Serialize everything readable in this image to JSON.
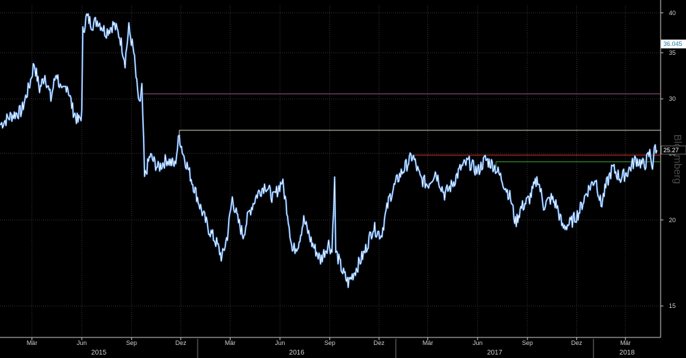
{
  "chart_data": {
    "type": "line",
    "title": "",
    "xlabel": "",
    "ylabel": "",
    "scale": "log",
    "ylim": [
      13.5,
      41
    ],
    "y_ticks": [
      15,
      20,
      25,
      30,
      35,
      40
    ],
    "x_range": [
      "2015-01-01",
      "2018-05-05"
    ],
    "x_tick_labels": [
      {
        "date": "2015-03-01",
        "label": "Mär"
      },
      {
        "date": "2015-06-01",
        "label": "Jun"
      },
      {
        "date": "2015-09-01",
        "label": "Sep"
      },
      {
        "date": "2015-12-01",
        "label": "Dez"
      },
      {
        "date": "2016-03-01",
        "label": "Mär"
      },
      {
        "date": "2016-06-01",
        "label": "Jun"
      },
      {
        "date": "2016-09-01",
        "label": "Sep"
      },
      {
        "date": "2016-12-01",
        "label": "Dez"
      },
      {
        "date": "2017-03-01",
        "label": "Mär"
      },
      {
        "date": "2017-06-01",
        "label": "Jun"
      },
      {
        "date": "2017-09-01",
        "label": "Sep"
      },
      {
        "date": "2017-12-01",
        "label": "Dez"
      },
      {
        "date": "2018-03-01",
        "label": "Mär"
      }
    ],
    "years": [
      {
        "label": "2015",
        "start": "2015-01-01",
        "end": "2016-01-01"
      },
      {
        "label": "2016",
        "start": "2016-01-01",
        "end": "2017-01-01"
      },
      {
        "label": "2017",
        "start": "2017-01-01",
        "end": "2018-01-01"
      },
      {
        "label": "2018",
        "start": "2018-01-01",
        "end": "2018-05-05"
      }
    ],
    "grid": true,
    "series": [
      {
        "color": "#ffffff",
        "shadow_color": "#3a7fd5",
        "points": [
          [
            "2015-01-01",
            27.5
          ],
          [
            "2015-01-20",
            28.3
          ],
          [
            "2015-02-10",
            28.8
          ],
          [
            "2015-02-25",
            31.5
          ],
          [
            "2015-03-05",
            33.8
          ],
          [
            "2015-03-15",
            31.0
          ],
          [
            "2015-03-25",
            32.5
          ],
          [
            "2015-04-05",
            30.0
          ],
          [
            "2015-04-15",
            32.8
          ],
          [
            "2015-04-25",
            30.5
          ],
          [
            "2015-05-05",
            31.5
          ],
          [
            "2015-05-15",
            29.0
          ],
          [
            "2015-05-25",
            27.8
          ],
          [
            "2015-06-01",
            28.5
          ],
          [
            "2015-06-03",
            37.5
          ],
          [
            "2015-06-10",
            39.5
          ],
          [
            "2015-06-20",
            38.5
          ],
          [
            "2015-07-01",
            39.0
          ],
          [
            "2015-07-15",
            37.5
          ],
          [
            "2015-07-30",
            38.5
          ],
          [
            "2015-08-10",
            37.0
          ],
          [
            "2015-08-20",
            34.0
          ],
          [
            "2015-08-27",
            38.0
          ],
          [
            "2015-09-05",
            35.0
          ],
          [
            "2015-09-12",
            30.5
          ],
          [
            "2015-09-17",
            29.5
          ],
          [
            "2015-09-20",
            31.0
          ],
          [
            "2015-09-25",
            23.0
          ],
          [
            "2015-10-05",
            24.8
          ],
          [
            "2015-10-20",
            23.8
          ],
          [
            "2015-11-05",
            24.5
          ],
          [
            "2015-11-20",
            24.0
          ],
          [
            "2015-11-28",
            26.5
          ],
          [
            "2015-12-05",
            25.0
          ],
          [
            "2015-12-20",
            23.0
          ],
          [
            "2016-01-05",
            21.0
          ],
          [
            "2016-01-20",
            19.5
          ],
          [
            "2016-02-05",
            18.5
          ],
          [
            "2016-02-15",
            17.6
          ],
          [
            "2016-02-25",
            19.0
          ],
          [
            "2016-03-05",
            21.5
          ],
          [
            "2016-03-15",
            20.0
          ],
          [
            "2016-03-25",
            19.0
          ],
          [
            "2016-04-05",
            20.5
          ],
          [
            "2016-04-20",
            21.8
          ],
          [
            "2016-05-05",
            22.5
          ],
          [
            "2016-05-20",
            21.5
          ],
          [
            "2016-06-05",
            22.8
          ],
          [
            "2016-06-15",
            20.5
          ],
          [
            "2016-06-24",
            18.0
          ],
          [
            "2016-07-05",
            18.5
          ],
          [
            "2016-07-15",
            20.0
          ],
          [
            "2016-07-30",
            18.5
          ],
          [
            "2016-08-15",
            17.5
          ],
          [
            "2016-08-30",
            18.5
          ],
          [
            "2016-09-05",
            18.0
          ],
          [
            "2016-09-10",
            22.8
          ],
          [
            "2016-09-12",
            18.0
          ],
          [
            "2016-09-25",
            16.8
          ],
          [
            "2016-10-05",
            16.2
          ],
          [
            "2016-10-20",
            17.0
          ],
          [
            "2016-11-05",
            18.0
          ],
          [
            "2016-11-20",
            19.5
          ],
          [
            "2016-12-05",
            19.0
          ],
          [
            "2016-12-20",
            21.5
          ],
          [
            "2017-01-05",
            23.0
          ],
          [
            "2017-01-20",
            24.0
          ],
          [
            "2017-02-01",
            24.8
          ],
          [
            "2017-02-15",
            23.0
          ],
          [
            "2017-03-01",
            22.5
          ],
          [
            "2017-03-15",
            23.5
          ],
          [
            "2017-04-01",
            21.8
          ],
          [
            "2017-04-15",
            22.5
          ],
          [
            "2017-05-01",
            23.8
          ],
          [
            "2017-05-15",
            24.3
          ],
          [
            "2017-06-01",
            23.5
          ],
          [
            "2017-06-15",
            24.5
          ],
          [
            "2017-07-01",
            24.0
          ],
          [
            "2017-07-15",
            23.0
          ],
          [
            "2017-08-01",
            21.5
          ],
          [
            "2017-08-10",
            19.8
          ],
          [
            "2017-08-20",
            20.8
          ],
          [
            "2017-09-05",
            21.5
          ],
          [
            "2017-09-20",
            23.0
          ],
          [
            "2017-10-01",
            21.0
          ],
          [
            "2017-10-15",
            21.5
          ],
          [
            "2017-10-25",
            21.0
          ],
          [
            "2017-11-05",
            19.5
          ],
          [
            "2017-11-20",
            19.8
          ],
          [
            "2017-12-05",
            20.5
          ],
          [
            "2017-12-20",
            22.0
          ],
          [
            "2018-01-05",
            23.0
          ],
          [
            "2018-01-15",
            21.0
          ],
          [
            "2018-01-25",
            22.5
          ],
          [
            "2018-02-05",
            23.8
          ],
          [
            "2018-02-20",
            23.0
          ],
          [
            "2018-03-05",
            23.5
          ],
          [
            "2018-03-20",
            24.5
          ],
          [
            "2018-04-05",
            24.0
          ],
          [
            "2018-04-15",
            25.0
          ],
          [
            "2018-04-20",
            24.0
          ],
          [
            "2018-04-25",
            25.6
          ],
          [
            "2018-04-28",
            25.27
          ]
        ]
      }
    ],
    "reference_lines": [
      {
        "value": 30.5,
        "start": "2015-09-17",
        "color": "#9a5a8a"
      },
      {
        "value": 27.0,
        "start": "2015-11-28",
        "color": "#d8d8c8"
      },
      {
        "value": 24.85,
        "start": "2017-01-25",
        "color": "#e0342c"
      },
      {
        "value": 24.3,
        "start": "2017-07-05",
        "color": "#3fae3f"
      }
    ],
    "price_labels": [
      {
        "text": "36.045",
        "value": 36.045,
        "bg": "#ffffff",
        "fg": "#1a7fa8"
      },
      {
        "text": "25.27",
        "value": 25.27,
        "bg": "#000000",
        "fg": "#ffffff"
      }
    ],
    "watermark": "Bloomberg",
    "colors": {
      "background": "#000000",
      "grid": "#3c3c3c",
      "axis": "#cfcfcf"
    }
  }
}
